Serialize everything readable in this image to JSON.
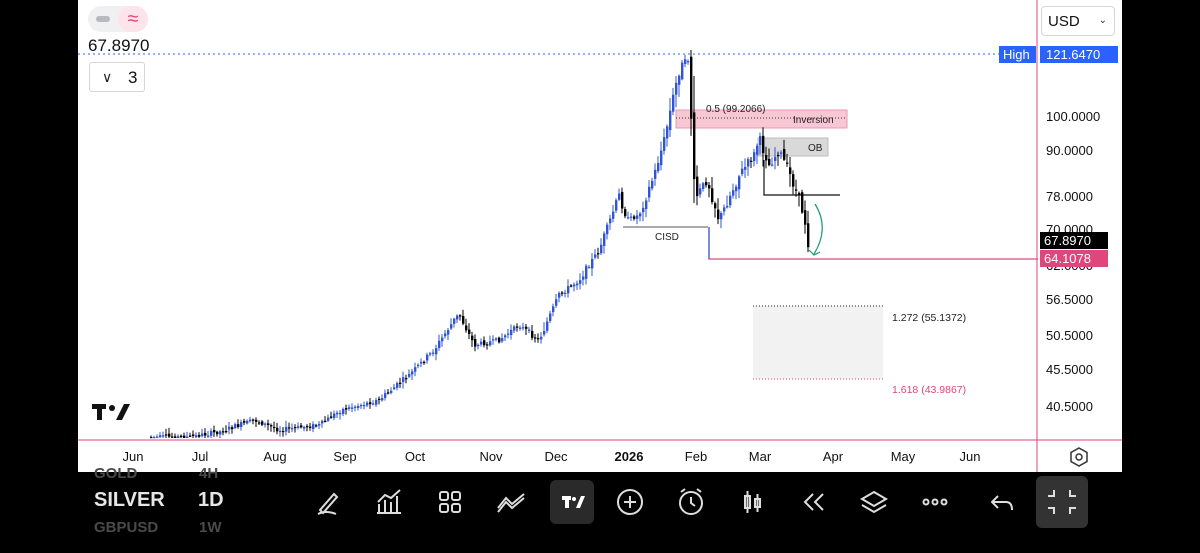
{
  "header": {
    "toggle_icon_left": "line-toggle-icon",
    "toggle_icon_right": "wave-icon",
    "price_label": "67.8970",
    "collapse_count": "3",
    "currency": "USD"
  },
  "scale_labels": {
    "high_tag": "High",
    "high_value": "121.6470",
    "current_price": "67.8970",
    "pink_level": "64.1078",
    "price_ticks": [
      "100.0000",
      "90.0000",
      "78.0000",
      "70.0000",
      "62.0000",
      "56.5000",
      "50.5000",
      "45.5000",
      "40.5000"
    ]
  },
  "time_axis": [
    "Jun",
    "Jul",
    "Aug",
    "Sep",
    "Oct",
    "Nov",
    "Dec",
    "2026",
    "Feb",
    "Mar",
    "Apr",
    "May",
    "Jun"
  ],
  "annotations": {
    "fib_05": "0.5 (99.2066)",
    "inversion": "Inversion",
    "ob": "OB",
    "cisd": "CISD",
    "fib_1272": "1.272 (55.1372)",
    "fib_1618": "1.618 (43.9867)"
  },
  "colors": {
    "up_candle": "#2f55d4",
    "down_candle": "#000000",
    "pink": "#e0457b",
    "high_badge": "#2962ff",
    "inversion_fill": "#f7c7d4",
    "ob_fill": "#d9d9d9"
  },
  "chart_data": {
    "type": "candlestick",
    "symbol": "SILVER",
    "timeframe": "1D",
    "scale": "log",
    "ylim": [
      38,
      130
    ],
    "high": 121.647,
    "last": 67.897,
    "close_path": [
      {
        "x": "2025-06",
        "y": 36.0
      },
      {
        "x": "2025-07",
        "y": 36.5
      },
      {
        "x": "2025-08",
        "y": 38.5
      },
      {
        "x": "2025-09",
        "y": 42.0
      },
      {
        "x": "2025-10",
        "y": 48.5
      },
      {
        "x": "2025-10-17",
        "y": 54.0
      },
      {
        "x": "2025-11",
        "y": 49.0
      },
      {
        "x": "2025-11-28",
        "y": 56.5
      },
      {
        "x": "2025-12",
        "y": 62.0
      },
      {
        "x": "2025-12-20",
        "y": 78.0
      },
      {
        "x": "2025-12-29",
        "y": 73.0
      },
      {
        "x": "2026-01",
        "y": 77.5
      },
      {
        "x": "2026-01-15",
        "y": 92.0
      },
      {
        "x": "2026-01-28",
        "y": 121.6
      },
      {
        "x": "2026-01-30",
        "y": 78.0
      },
      {
        "x": "2026-02",
        "y": 85.0
      },
      {
        "x": "2026-02-05",
        "y": 72.0
      },
      {
        "x": "2026-02-18",
        "y": 90.0
      },
      {
        "x": "2026-03",
        "y": 96.0
      },
      {
        "x": "2026-03-05",
        "y": 80.0
      },
      {
        "x": "2026-03-10",
        "y": 90.0
      },
      {
        "x": "2026-03-20",
        "y": 74.0
      },
      {
        "x": "2026-03-24",
        "y": 67.9
      }
    ]
  },
  "toolbar": {
    "symbol_prev": "GOLD",
    "symbol": "SILVER",
    "symbol_next": "GBPUSD",
    "timeframe_prev": "4H",
    "timeframe": "1D",
    "timeframe_next": "1W",
    "icons": [
      "pen-icon",
      "indicators-icon",
      "layout-grid-icon",
      "compare-icon",
      "tradingview-icon",
      "add-icon",
      "alert-clock-icon",
      "candles-icon",
      "replay-icon",
      "layers-icon",
      "more-icon",
      "undo-icon",
      "fullscreen-exit-icon"
    ]
  }
}
